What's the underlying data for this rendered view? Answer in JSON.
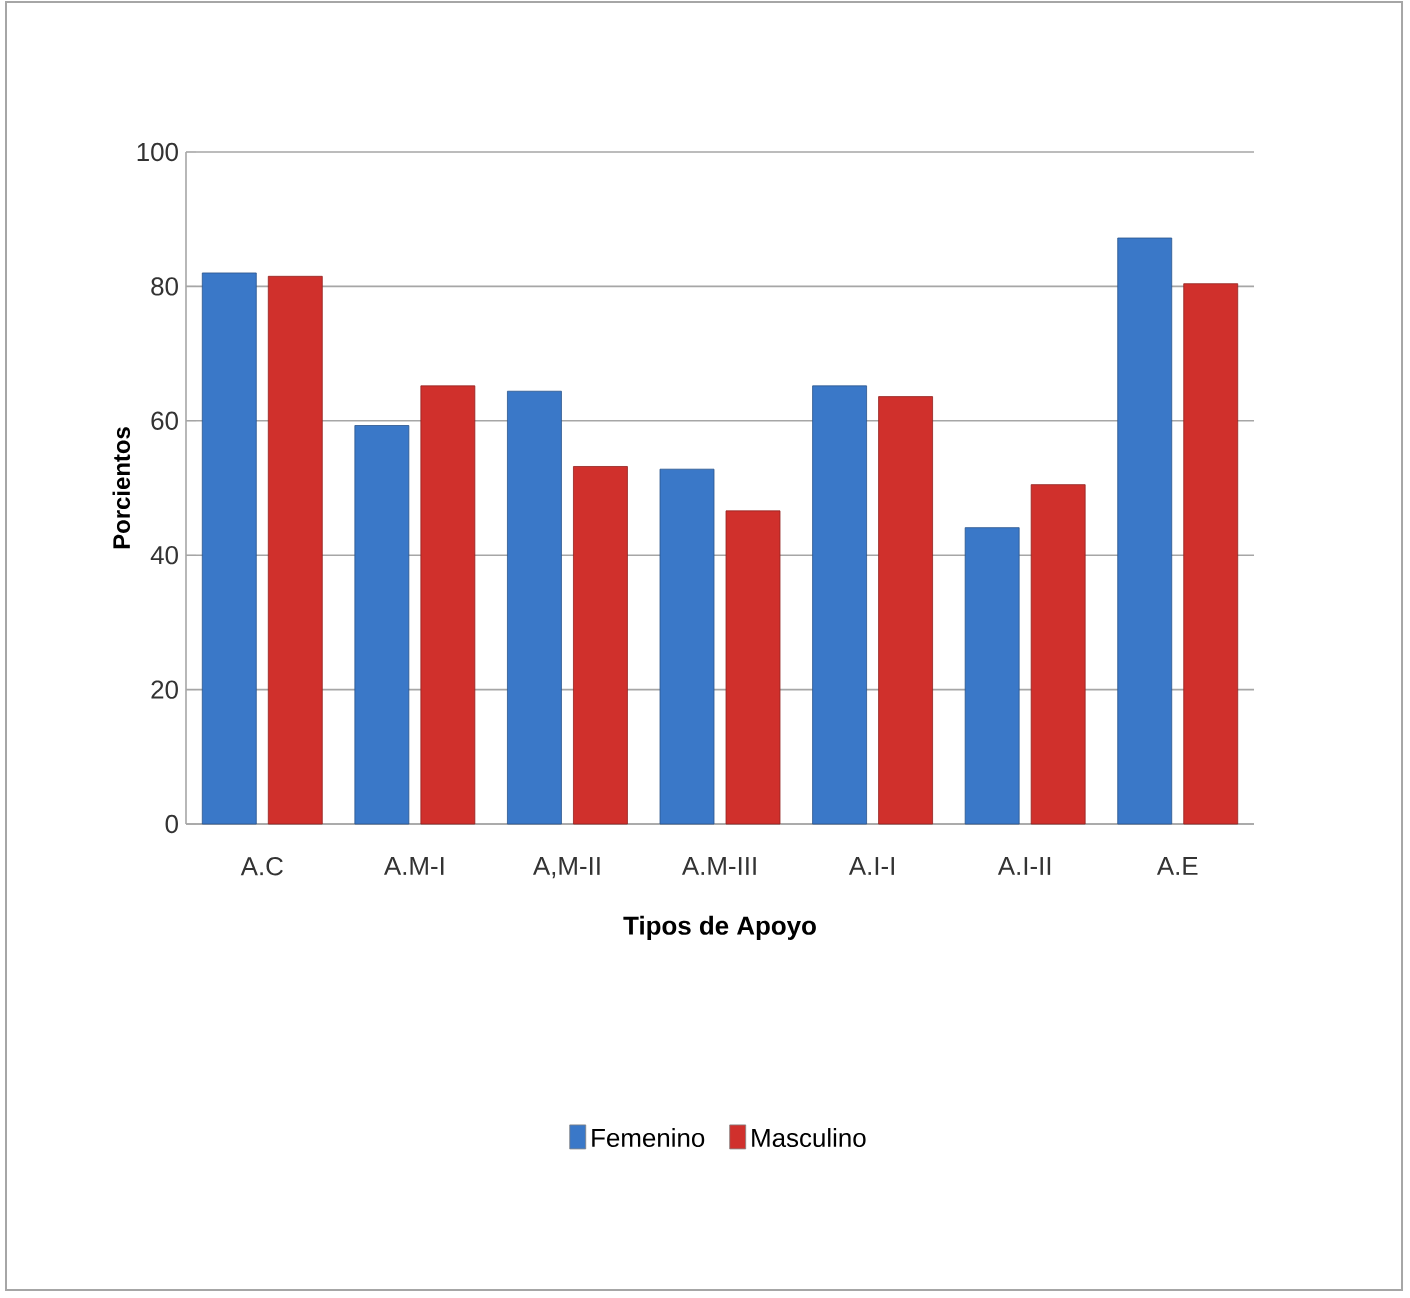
{
  "chart_data": {
    "type": "bar",
    "categories": [
      "A.C",
      "A.M-I",
      "A,M-II",
      "A.M-III",
      "A.I-I",
      "A.I-II",
      "A.E"
    ],
    "series": [
      {
        "name": "Femenino",
        "color": "#3a78c8",
        "values": [
          82,
          59.3,
          64.4,
          52.8,
          65.2,
          44.1,
          87.2
        ]
      },
      {
        "name": "Masculino",
        "color": "#d0302c",
        "values": [
          81.5,
          65.2,
          53.2,
          46.6,
          63.6,
          50.5,
          80.4
        ]
      }
    ],
    "xlabel": "Tipos de Apoyo",
    "ylabel": "Porcientos",
    "ylim": [
      0,
      100
    ],
    "yticks": [
      0,
      20,
      40,
      60,
      80,
      100
    ],
    "grid": "y",
    "legend": "bottom"
  }
}
